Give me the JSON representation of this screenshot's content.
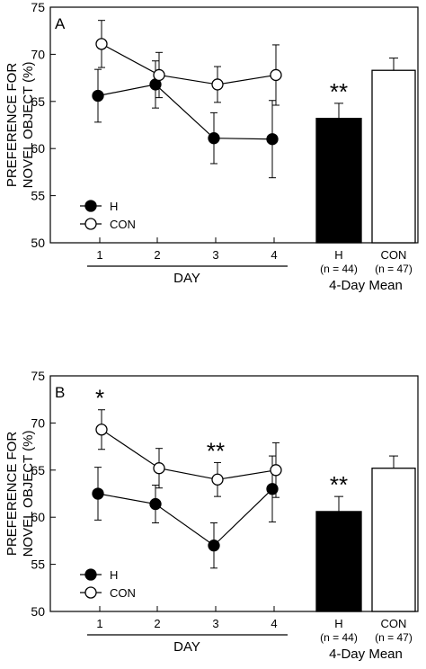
{
  "chart_data": [
    {
      "type": "line",
      "panel_label": "A",
      "ylabel": "PREFERENCE FOR NOVEL OBJECT (%)",
      "ylabel_lines": [
        "PREFERENCE FOR",
        "NOVEL OBJECT (%)"
      ],
      "xlabel": "DAY",
      "ylim": [
        50,
        75
      ],
      "yticks": [
        50,
        55,
        60,
        65,
        70,
        75
      ],
      "x": [
        1,
        2,
        3,
        4
      ],
      "grid": false,
      "legend": "bottom-left",
      "series": [
        {
          "name": "H",
          "marker": "filled",
          "values": [
            65.6,
            66.8,
            61.1,
            61.0
          ],
          "errors": [
            2.8,
            2.5,
            2.7,
            4.1
          ]
        },
        {
          "name": "CON",
          "marker": "open",
          "values": [
            71.1,
            67.8,
            66.8,
            67.8
          ],
          "errors": [
            2.5,
            2.4,
            1.9,
            3.2
          ]
        }
      ],
      "annotations": [],
      "bar_inset": {
        "title": "4-Day Mean",
        "bars": [
          {
            "name": "H",
            "n_label": "(n = 44)",
            "value": 63.2,
            "error": 1.6,
            "fill": "#000000",
            "annotation": "**"
          },
          {
            "name": "CON",
            "n_label": "(n = 47)",
            "value": 68.3,
            "error": 1.3,
            "fill": "#ffffff",
            "annotation": ""
          }
        ]
      }
    },
    {
      "type": "line",
      "panel_label": "B",
      "ylabel": "PREFERENCE FOR NOVEL OBJECT (%)",
      "ylabel_lines": [
        "PREFERENCE FOR",
        "NOVEL OBJECT (%)"
      ],
      "xlabel": "DAY",
      "ylim": [
        50,
        75
      ],
      "yticks": [
        50,
        55,
        60,
        65,
        70,
        75
      ],
      "x": [
        1,
        2,
        3,
        4
      ],
      "grid": false,
      "legend": "bottom-left",
      "series": [
        {
          "name": "H",
          "marker": "filled",
          "values": [
            62.5,
            61.4,
            57.0,
            63.0
          ],
          "errors": [
            2.8,
            2.0,
            2.4,
            3.5
          ]
        },
        {
          "name": "CON",
          "marker": "open",
          "values": [
            69.3,
            65.2,
            64.0,
            65.0
          ],
          "errors": [
            2.1,
            2.1,
            1.8,
            2.9
          ]
        }
      ],
      "annotations": [
        {
          "x": 1,
          "text": "*"
        },
        {
          "x": 3,
          "text": "**"
        }
      ],
      "bar_inset": {
        "title": "4-Day Mean",
        "bars": [
          {
            "name": "H",
            "n_label": "(n = 44)",
            "value": 60.6,
            "error": 1.6,
            "fill": "#000000",
            "annotation": "**"
          },
          {
            "name": "CON",
            "n_label": "(n = 47)",
            "value": 65.2,
            "error": 1.3,
            "fill": "#ffffff",
            "annotation": ""
          }
        ]
      }
    }
  ]
}
